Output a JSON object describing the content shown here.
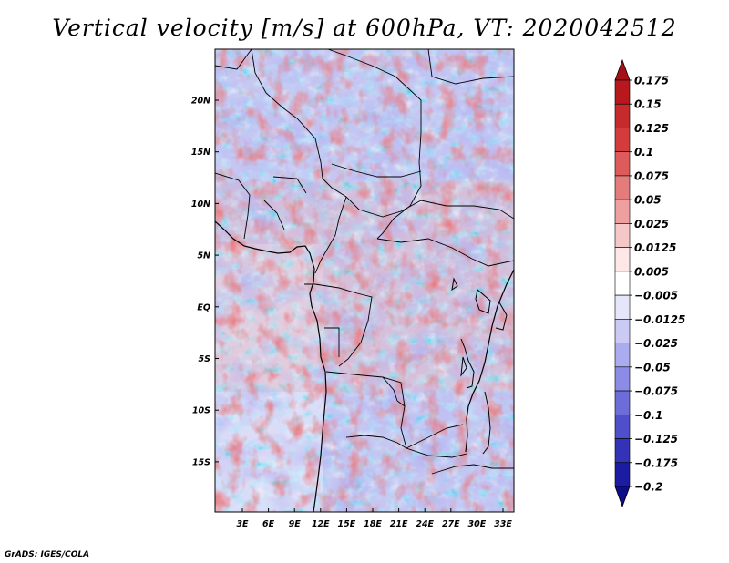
{
  "title": "Vertical velocity [m/s] at 600hPa, VT: 2020042512",
  "credit": "GrADS: IGES/COLA",
  "map": {
    "variable": "Vertical velocity",
    "units": "m/s",
    "level": "600hPa",
    "valid_time": "2020042512",
    "lon_labels": [
      "3E",
      "6E",
      "9E",
      "12E",
      "15E",
      "18E",
      "21E",
      "24E",
      "27E",
      "30E",
      "33E"
    ],
    "lat_labels": [
      "20N",
      "15N",
      "10N",
      "5N",
      "EQ",
      "5S",
      "10S",
      "15S"
    ]
  },
  "colorbar": {
    "labels": [
      "0.175",
      "0.15",
      "0.125",
      "0.1",
      "0.075",
      "0.05",
      "0.025",
      "0.0125",
      "0.005",
      "−0.005",
      "−0.0125",
      "−0.025",
      "−0.05",
      "−0.075",
      "−0.1",
      "−0.125",
      "−0.175",
      "−0.2"
    ],
    "colors": [
      "#a50f15",
      "#b8171c",
      "#c62a2a",
      "#d43c3c",
      "#dd5b5b",
      "#e57c7c",
      "#ee9f9f",
      "#f6c7c7",
      "#fde7e7",
      "#ffffff",
      "#e6e6fb",
      "#cacaf5",
      "#ababef",
      "#8c8ce6",
      "#6d6dda",
      "#4f4fcc",
      "#3333b8",
      "#1c1ca3",
      "#0c0c8c"
    ]
  }
}
